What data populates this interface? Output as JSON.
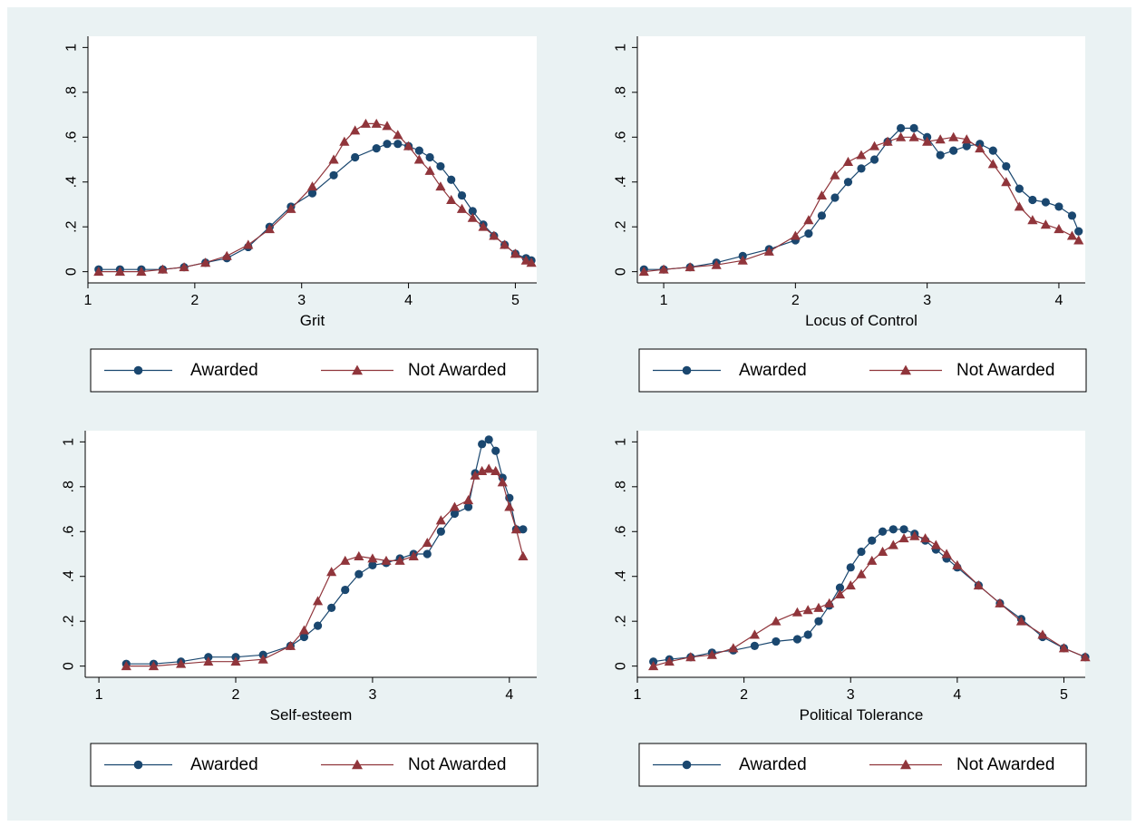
{
  "colors": {
    "awarded": "#1a476f",
    "not_awarded": "#90353b",
    "background": "#eaf2f3",
    "plot_area": "#ffffff"
  },
  "legend": {
    "awarded_label": "Awarded",
    "not_awarded_label": "Not Awarded"
  },
  "chart_data": [
    {
      "type": "line",
      "xlabel": "Grit",
      "ylabel": "",
      "xlim": [
        1.0,
        5.2
      ],
      "ylim": [
        0,
        1
      ],
      "x_ticks": [
        1,
        2,
        3,
        4,
        5
      ],
      "x_tick_labels": [
        "1",
        "2",
        "3",
        "4",
        "5"
      ],
      "y_ticks": [
        0,
        0.2,
        0.4,
        0.6,
        0.8,
        1
      ],
      "y_tick_labels": [
        "0",
        ".2",
        ".4",
        ".6",
        ".8",
        "1"
      ],
      "legend_position": "bottom",
      "series": [
        {
          "name": "Awarded",
          "marker": "circle",
          "x": [
            1.1,
            1.3,
            1.5,
            1.7,
            1.9,
            2.1,
            2.3,
            2.5,
            2.7,
            2.9,
            3.1,
            3.3,
            3.5,
            3.7,
            3.8,
            3.9,
            4.0,
            4.1,
            4.2,
            4.3,
            4.4,
            4.5,
            4.6,
            4.7,
            4.8,
            4.9,
            5.0,
            5.1,
            5.15
          ],
          "y": [
            0.01,
            0.01,
            0.01,
            0.01,
            0.02,
            0.04,
            0.06,
            0.11,
            0.2,
            0.29,
            0.35,
            0.43,
            0.51,
            0.55,
            0.57,
            0.57,
            0.56,
            0.54,
            0.51,
            0.47,
            0.41,
            0.34,
            0.27,
            0.21,
            0.16,
            0.12,
            0.08,
            0.06,
            0.05
          ]
        },
        {
          "name": "Not Awarded",
          "marker": "triangle",
          "x": [
            1.1,
            1.3,
            1.5,
            1.7,
            1.9,
            2.1,
            2.3,
            2.5,
            2.7,
            2.9,
            3.1,
            3.3,
            3.4,
            3.5,
            3.6,
            3.7,
            3.8,
            3.9,
            4.0,
            4.1,
            4.2,
            4.3,
            4.4,
            4.5,
            4.6,
            4.7,
            4.8,
            4.9,
            5.0,
            5.1,
            5.15
          ],
          "y": [
            0.0,
            0.0,
            0.0,
            0.01,
            0.02,
            0.04,
            0.07,
            0.12,
            0.19,
            0.28,
            0.38,
            0.5,
            0.58,
            0.63,
            0.66,
            0.66,
            0.65,
            0.61,
            0.56,
            0.5,
            0.45,
            0.38,
            0.32,
            0.28,
            0.24,
            0.2,
            0.16,
            0.12,
            0.08,
            0.05,
            0.04
          ]
        }
      ]
    },
    {
      "type": "line",
      "xlabel": "Locus of Control",
      "ylabel": "",
      "xlim": [
        0.8,
        4.2
      ],
      "ylim": [
        0,
        1
      ],
      "x_ticks": [
        1,
        2,
        3,
        4
      ],
      "x_tick_labels": [
        "1",
        "2",
        "3",
        "4"
      ],
      "y_ticks": [
        0,
        0.2,
        0.4,
        0.6,
        0.8,
        1
      ],
      "y_tick_labels": [
        "0",
        ".2",
        ".4",
        ".6",
        ".8",
        "1"
      ],
      "legend_position": "bottom",
      "series": [
        {
          "name": "Awarded",
          "marker": "circle",
          "x": [
            0.85,
            1.0,
            1.2,
            1.4,
            1.6,
            1.8,
            2.0,
            2.1,
            2.2,
            2.3,
            2.4,
            2.5,
            2.6,
            2.7,
            2.8,
            2.9,
            3.0,
            3.1,
            3.2,
            3.3,
            3.4,
            3.5,
            3.6,
            3.7,
            3.8,
            3.9,
            4.0,
            4.1,
            4.15
          ],
          "y": [
            0.01,
            0.01,
            0.02,
            0.04,
            0.07,
            0.1,
            0.14,
            0.17,
            0.25,
            0.33,
            0.4,
            0.46,
            0.5,
            0.58,
            0.64,
            0.64,
            0.6,
            0.52,
            0.54,
            0.56,
            0.57,
            0.54,
            0.47,
            0.37,
            0.32,
            0.31,
            0.29,
            0.25,
            0.18
          ]
        },
        {
          "name": "Not Awarded",
          "marker": "triangle",
          "x": [
            0.85,
            1.0,
            1.2,
            1.4,
            1.6,
            1.8,
            2.0,
            2.1,
            2.2,
            2.3,
            2.4,
            2.5,
            2.6,
            2.7,
            2.8,
            2.9,
            3.0,
            3.1,
            3.2,
            3.3,
            3.4,
            3.5,
            3.6,
            3.7,
            3.8,
            3.9,
            4.0,
            4.1,
            4.15
          ],
          "y": [
            0.0,
            0.01,
            0.02,
            0.03,
            0.05,
            0.09,
            0.16,
            0.23,
            0.34,
            0.43,
            0.49,
            0.52,
            0.56,
            0.58,
            0.6,
            0.6,
            0.58,
            0.59,
            0.6,
            0.59,
            0.55,
            0.48,
            0.4,
            0.29,
            0.23,
            0.21,
            0.19,
            0.16,
            0.14
          ]
        }
      ]
    },
    {
      "type": "line",
      "xlabel": "Self-esteem",
      "ylabel": "",
      "xlim": [
        0.9,
        4.2
      ],
      "ylim": [
        0,
        1
      ],
      "x_ticks": [
        1,
        2,
        3,
        4
      ],
      "x_tick_labels": [
        "1",
        "2",
        "3",
        "4"
      ],
      "y_ticks": [
        0,
        0.2,
        0.4,
        0.6,
        0.8,
        1
      ],
      "y_tick_labels": [
        "0",
        ".2",
        ".4",
        ".6",
        ".8",
        "1"
      ],
      "legend_position": "bottom",
      "series": [
        {
          "name": "Awarded",
          "marker": "circle",
          "x": [
            1.2,
            1.4,
            1.6,
            1.8,
            2.0,
            2.2,
            2.4,
            2.5,
            2.6,
            2.7,
            2.8,
            2.9,
            3.0,
            3.1,
            3.2,
            3.3,
            3.4,
            3.5,
            3.6,
            3.7,
            3.75,
            3.8,
            3.85,
            3.9,
            3.95,
            4.0,
            4.05,
            4.1
          ],
          "y": [
            0.01,
            0.01,
            0.02,
            0.04,
            0.04,
            0.05,
            0.09,
            0.13,
            0.18,
            0.26,
            0.34,
            0.41,
            0.45,
            0.46,
            0.48,
            0.5,
            0.5,
            0.6,
            0.68,
            0.71,
            0.86,
            0.99,
            1.01,
            0.96,
            0.84,
            0.75,
            0.61,
            0.61
          ]
        },
        {
          "name": "Not Awarded",
          "marker": "triangle",
          "x": [
            1.2,
            1.4,
            1.6,
            1.8,
            2.0,
            2.2,
            2.4,
            2.5,
            2.6,
            2.7,
            2.8,
            2.9,
            3.0,
            3.1,
            3.2,
            3.3,
            3.4,
            3.5,
            3.6,
            3.7,
            3.75,
            3.8,
            3.85,
            3.9,
            3.95,
            4.0,
            4.05,
            4.1
          ],
          "y": [
            0.0,
            0.0,
            0.01,
            0.02,
            0.02,
            0.03,
            0.09,
            0.16,
            0.29,
            0.42,
            0.47,
            0.49,
            0.48,
            0.47,
            0.47,
            0.49,
            0.55,
            0.65,
            0.71,
            0.74,
            0.85,
            0.87,
            0.88,
            0.87,
            0.82,
            0.71,
            0.61,
            0.49
          ]
        }
      ]
    },
    {
      "type": "line",
      "xlabel": "Political Tolerance",
      "ylabel": "",
      "xlim": [
        1.0,
        5.2
      ],
      "ylim": [
        0,
        1
      ],
      "x_ticks": [
        1,
        2,
        3,
        4,
        5
      ],
      "x_tick_labels": [
        "1",
        "2",
        "3",
        "4",
        "5"
      ],
      "y_ticks": [
        0,
        0.2,
        0.4,
        0.6,
        0.8,
        1
      ],
      "y_tick_labels": [
        "0",
        ".2",
        ".4",
        ".6",
        ".8",
        "1"
      ],
      "legend_position": "bottom",
      "series": [
        {
          "name": "Awarded",
          "marker": "circle",
          "x": [
            1.15,
            1.3,
            1.5,
            1.7,
            1.9,
            2.1,
            2.3,
            2.5,
            2.6,
            2.7,
            2.8,
            2.9,
            3.0,
            3.1,
            3.2,
            3.3,
            3.4,
            3.5,
            3.6,
            3.7,
            3.8,
            3.9,
            4.0,
            4.2,
            4.4,
            4.6,
            4.8,
            5.0,
            5.2
          ],
          "y": [
            0.02,
            0.03,
            0.04,
            0.06,
            0.07,
            0.09,
            0.11,
            0.12,
            0.14,
            0.2,
            0.27,
            0.35,
            0.44,
            0.51,
            0.56,
            0.6,
            0.61,
            0.61,
            0.59,
            0.56,
            0.52,
            0.48,
            0.44,
            0.36,
            0.28,
            0.21,
            0.13,
            0.08,
            0.04
          ]
        },
        {
          "name": "Not Awarded",
          "marker": "triangle",
          "x": [
            1.15,
            1.3,
            1.5,
            1.7,
            1.9,
            2.1,
            2.3,
            2.5,
            2.6,
            2.7,
            2.8,
            2.9,
            3.0,
            3.1,
            3.2,
            3.3,
            3.4,
            3.5,
            3.6,
            3.7,
            3.8,
            3.9,
            4.0,
            4.2,
            4.4,
            4.6,
            4.8,
            5.0,
            5.2
          ],
          "y": [
            0.0,
            0.02,
            0.04,
            0.05,
            0.08,
            0.14,
            0.2,
            0.24,
            0.25,
            0.26,
            0.28,
            0.32,
            0.36,
            0.41,
            0.47,
            0.51,
            0.54,
            0.57,
            0.58,
            0.57,
            0.54,
            0.5,
            0.45,
            0.36,
            0.28,
            0.2,
            0.14,
            0.08,
            0.04
          ]
        }
      ]
    }
  ]
}
